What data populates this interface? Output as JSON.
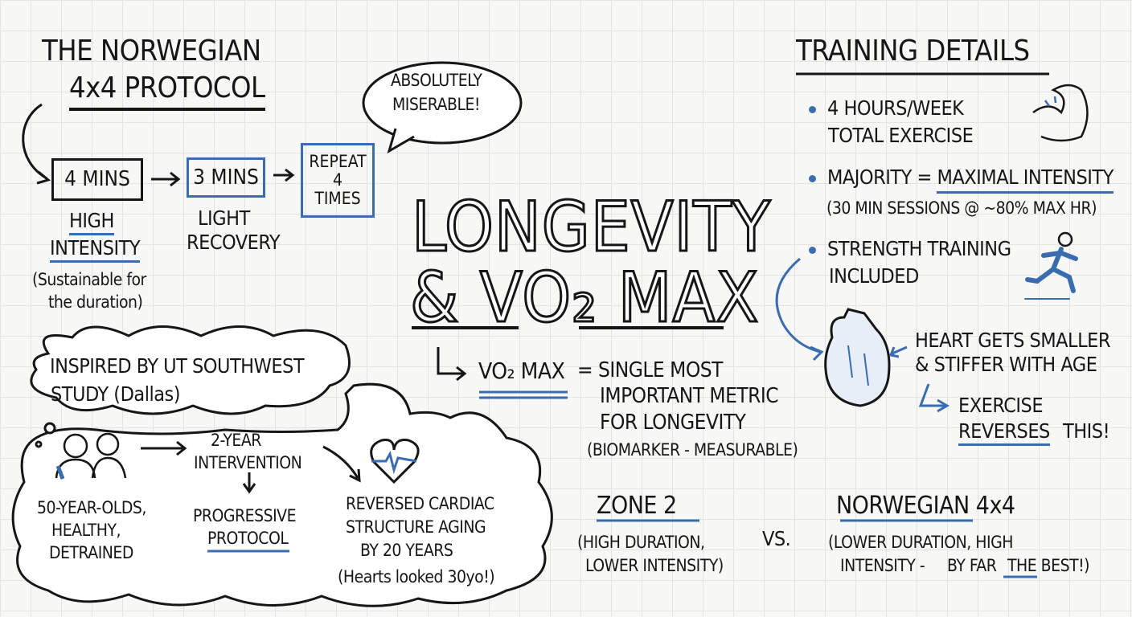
{
  "protocol": {
    "title_line1": "THE NORWEGIAN",
    "title_line2": "4x4 PROTOCOL",
    "step1": "4 MINS",
    "step2": "3 MINS",
    "step3": "REPEAT 4 TIMES",
    "step1_label_a": "HIGH",
    "step1_label_b": "INTENSITY",
    "step1_note_a": "(Sustainable for",
    "step1_note_b": "the duration)",
    "step2_label_a": "LIGHT",
    "step2_label_b": "RECOVERY",
    "bubble_a": "ABSOLUTELY",
    "bubble_b": "MISERABLE!"
  },
  "main": {
    "title_line1": "LONGEVITY",
    "title_line2": "& VO₂ MAX",
    "vo2_term": "VO₂ MAX",
    "def_line1": "= SINGLE MOST",
    "def_line2": "IMPORTANT METRIC",
    "def_line3": "FOR LONGEVITY",
    "def_note": "(BIOMARKER - MEASURABLE)"
  },
  "study": {
    "header_a": "INSPIRED BY UT SOUTHWEST",
    "header_b": "STUDY (Dallas)",
    "subjects": [
      "50-YEAR-OLDS,",
      "HEALTHY,",
      "DETRAINED"
    ],
    "intervention_a": "2-YEAR",
    "intervention_b": "INTERVENTION",
    "progressive_a": "PROGRESSIVE",
    "progressive_b": "PROTOCOL",
    "result": [
      "REVERSED CARDIAC",
      "STRUCTURE AGING",
      "BY 20 YEARS",
      "(Hearts looked 30yo!)"
    ]
  },
  "comparison": {
    "zone2": "ZONE 2",
    "zone2_note_a": "(HIGH DURATION,",
    "zone2_note_b": "LOWER INTENSITY)",
    "vs": "VS.",
    "norwegian": "NORWEGIAN 4x4",
    "norwegian_note_a": "(LOWER DURATION, HIGH",
    "norwegian_note_b": "INTENSITY -",
    "norwegian_note_c": "BY FAR",
    "norwegian_note_d": "THE BEST!)"
  },
  "training": {
    "title": "TRAINING DETAILS",
    "b1_a": "4 HOURS/WEEK",
    "b1_b": "TOTAL EXERCISE",
    "b2_a": "MAJORITY =",
    "b2_b": "MAXIMAL INTENSITY",
    "b2_note": "(30 MIN SESSIONS @ ~80% MAX HR)",
    "b3_a": "STRENGTH TRAINING",
    "b3_b": "INCLUDED",
    "heart_a": "HEART GETS SMALLER",
    "heart_b": "& STIFFER WITH AGE",
    "reverse_a": "EXERCISE",
    "reverse_b": "REVERSES",
    "reverse_c": "THIS!"
  },
  "icons": [
    "flexed-arm-icon",
    "runner-icon",
    "anatomical-heart-icon",
    "heartbeat-heart-icon",
    "people-icon",
    "speech-bubble",
    "thought-cloud"
  ],
  "colors": {
    "ink": "#161616",
    "accent": "#3a6db0",
    "grid": "#e3e3e3"
  }
}
